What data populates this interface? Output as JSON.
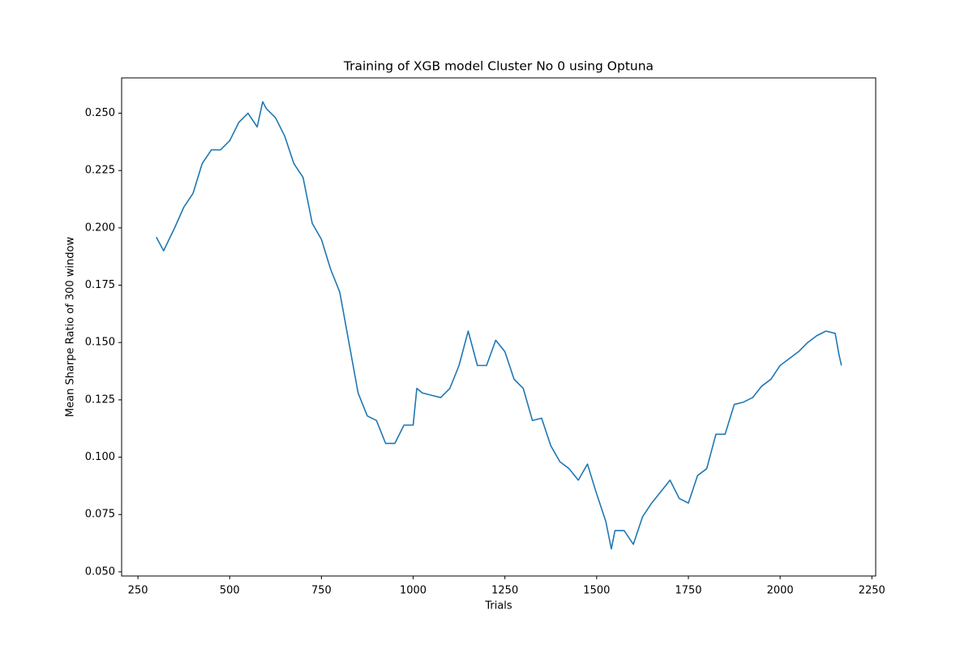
{
  "chart_data": {
    "type": "line",
    "title": "Training of XGB model Cluster No 0 using Optuna",
    "x_label": "Trials",
    "y_label": "Mean Sharpe Ratio of 300 window",
    "x": [
      300,
      320,
      350,
      375,
      400,
      425,
      450,
      475,
      500,
      525,
      550,
      575,
      590,
      600,
      625,
      650,
      675,
      700,
      725,
      750,
      775,
      800,
      825,
      850,
      875,
      900,
      925,
      950,
      975,
      1000,
      1010,
      1025,
      1050,
      1075,
      1100,
      1125,
      1150,
      1175,
      1200,
      1225,
      1250,
      1275,
      1300,
      1325,
      1350,
      1375,
      1400,
      1425,
      1450,
      1475,
      1500,
      1525,
      1540,
      1550,
      1575,
      1600,
      1625,
      1650,
      1675,
      1700,
      1725,
      1750,
      1775,
      1800,
      1825,
      1850,
      1875,
      1900,
      1925,
      1950,
      1975,
      2000,
      2025,
      2050,
      2075,
      2100,
      2125,
      2150,
      2160,
      2167
    ],
    "series": [
      {
        "name": "Mean Sharpe Ratio",
        "color": "#1f77b4",
        "values": [
          0.196,
          0.19,
          0.2,
          0.209,
          0.215,
          0.228,
          0.234,
          0.234,
          0.238,
          0.246,
          0.25,
          0.244,
          0.255,
          0.252,
          0.248,
          0.24,
          0.228,
          0.222,
          0.202,
          0.195,
          0.182,
          0.172,
          0.15,
          0.128,
          0.118,
          0.116,
          0.106,
          0.106,
          0.114,
          0.114,
          0.13,
          0.128,
          0.127,
          0.126,
          0.13,
          0.14,
          0.155,
          0.14,
          0.14,
          0.151,
          0.146,
          0.134,
          0.13,
          0.116,
          0.117,
          0.105,
          0.098,
          0.095,
          0.09,
          0.097,
          0.084,
          0.072,
          0.06,
          0.068,
          0.068,
          0.062,
          0.074,
          0.08,
          0.085,
          0.09,
          0.082,
          0.08,
          0.092,
          0.095,
          0.11,
          0.11,
          0.123,
          0.124,
          0.126,
          0.131,
          0.134,
          0.14,
          0.143,
          0.146,
          0.15,
          0.153,
          0.155,
          0.154,
          0.145,
          0.14
        ]
      }
    ],
    "xlim": [
      205.6,
      2260.4
    ],
    "ylim": [
      0.0482,
      0.2654
    ],
    "xticks": [
      250,
      500,
      750,
      1000,
      1250,
      1500,
      1750,
      2000,
      2250
    ],
    "yticks": [
      {
        "value": 0.05,
        "label": "0.050"
      },
      {
        "value": 0.075,
        "label": "0.075"
      },
      {
        "value": 0.1,
        "label": "0.100"
      },
      {
        "value": 0.125,
        "label": "0.125"
      },
      {
        "value": 0.15,
        "label": "0.150"
      },
      {
        "value": 0.175,
        "label": "0.175"
      },
      {
        "value": 0.2,
        "label": "0.200"
      },
      {
        "value": 0.225,
        "label": "0.225"
      },
      {
        "value": 0.25,
        "label": "0.250"
      }
    ],
    "grid": false
  }
}
